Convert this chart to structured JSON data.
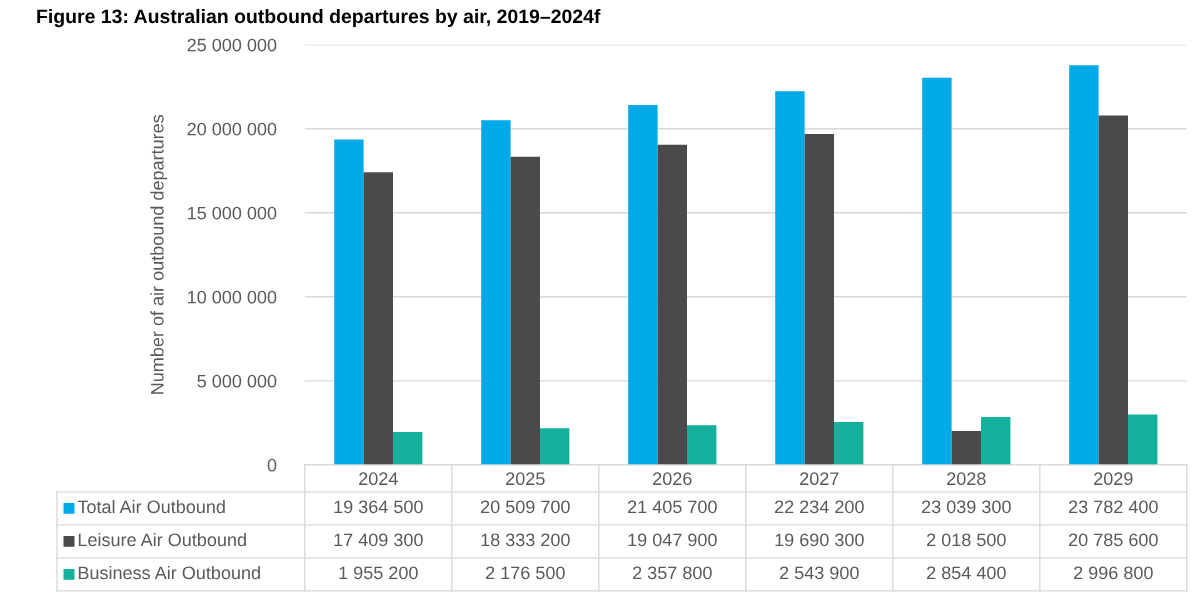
{
  "chart_data": {
    "type": "bar",
    "title": "Figure 13: Australian outbound departures by air, 2019–2024f",
    "ylabel": "Number of air outbound departures",
    "categories": [
      "2024",
      "2025",
      "2026",
      "2027",
      "2028",
      "2029"
    ],
    "series": [
      {
        "name": "Total Air Outbound",
        "color": "#00a9e8",
        "values": [
          19364500,
          20509700,
          21405700,
          22234200,
          23039300,
          23782400
        ],
        "value_labels": [
          "19 364 500",
          "20 509 700",
          "21 405 700",
          "22 234 200",
          "23 039 300",
          "23 782 400"
        ]
      },
      {
        "name": "Leisure Air Outbound",
        "color": "#4a4a4c",
        "values": [
          17409300,
          18333200,
          19047900,
          19690300,
          2018500,
          20785600
        ],
        "value_labels": [
          "17 409 300",
          "18 333 200",
          "19 047 900",
          "19 690 300",
          "2 018 500",
          "20 785 600"
        ]
      },
      {
        "name": "Business Air Outbound",
        "color": "#14b09b",
        "values": [
          1955200,
          2176500,
          2357800,
          2543900,
          2854400,
          2996800
        ],
        "value_labels": [
          "1 955 200",
          "2 176 500",
          "2 357 800",
          "2 543 900",
          "2 854 400",
          "2 996 800"
        ]
      }
    ],
    "ylim": [
      0,
      25000000
    ],
    "yticks": [
      {
        "value": 0,
        "label": "0"
      },
      {
        "value": 5000000,
        "label": "5 000 000"
      },
      {
        "value": 10000000,
        "label": "10 000 000"
      },
      {
        "value": 15000000,
        "label": "15 000 000"
      },
      {
        "value": 20000000,
        "label": "20 000 000"
      },
      {
        "value": 25000000,
        "label": "25 000 000"
      }
    ],
    "grid": "y",
    "legend": "bottom"
  }
}
